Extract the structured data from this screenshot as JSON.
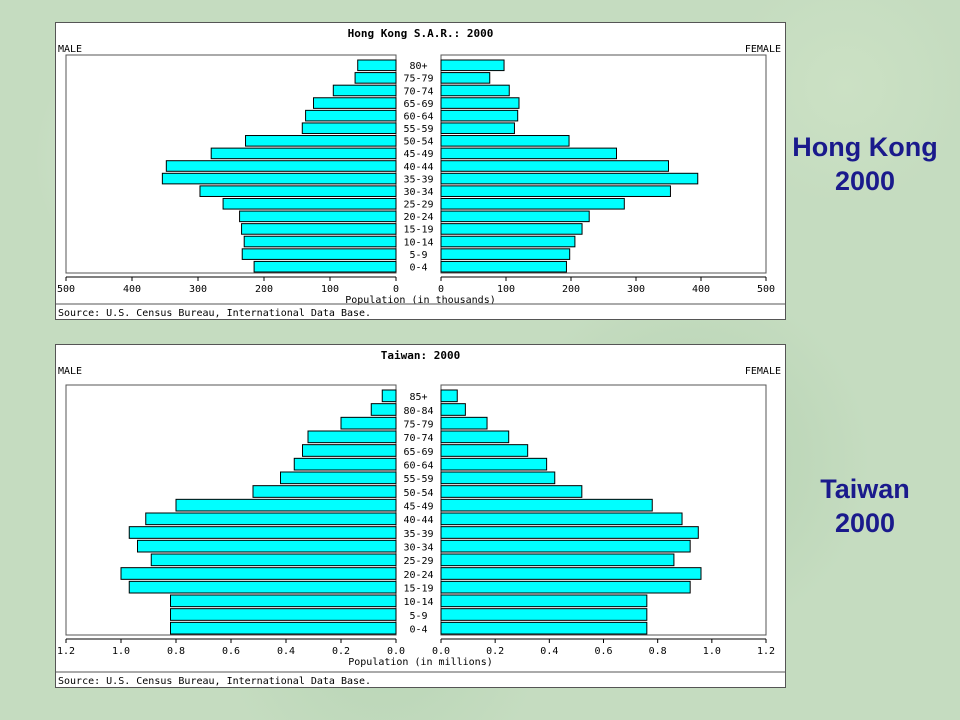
{
  "side_labels": {
    "hk": {
      "line1": "Hong Kong",
      "line2": "2000"
    },
    "tw": {
      "line1": "Taiwan",
      "line2": "2000"
    }
  },
  "colors": {
    "bar": "#00ffff",
    "bar_stroke": "#000000",
    "side_text": "#1a1a8c"
  },
  "chart_data": [
    {
      "type": "bar",
      "orientation": "horizontal-pyramid",
      "title": "Hong Kong S.A.R.: 2000",
      "left_label": "MALE",
      "right_label": "FEMALE",
      "xlabel": "Population (in thousands)",
      "source": "Source: U.S. Census Bureau, International Data Base.",
      "xlim": [
        0,
        500
      ],
      "tick_values": [
        0,
        100,
        200,
        300,
        400,
        500
      ],
      "tick_labels": [
        "0",
        "100",
        "200",
        "300",
        "400",
        "500"
      ],
      "categories": [
        "80+",
        "75-79",
        "70-74",
        "65-69",
        "60-64",
        "55-59",
        "50-54",
        "45-49",
        "40-44",
        "35-39",
        "30-34",
        "25-29",
        "20-24",
        "15-19",
        "10-14",
        "5-9",
        "0-4"
      ],
      "series": [
        {
          "name": "MALE",
          "values": [
            58,
            62,
            95,
            125,
            137,
            142,
            228,
            280,
            348,
            354,
            297,
            262,
            237,
            234,
            230,
            233,
            215
          ]
        },
        {
          "name": "FEMALE",
          "values": [
            97,
            75,
            105,
            120,
            118,
            113,
            197,
            270,
            350,
            395,
            353,
            282,
            228,
            217,
            206,
            198,
            193
          ]
        }
      ]
    },
    {
      "type": "bar",
      "orientation": "horizontal-pyramid",
      "title": "Taiwan: 2000",
      "left_label": "MALE",
      "right_label": "FEMALE",
      "xlabel": "Population (in millions)",
      "source": "Source: U.S. Census Bureau, International Data Base.",
      "xlim": [
        0,
        1.2
      ],
      "tick_values": [
        0,
        0.2,
        0.4,
        0.6,
        0.8,
        1.0,
        1.2
      ],
      "tick_labels": [
        "0.0",
        "0.2",
        "0.4",
        "0.6",
        "0.8",
        "1.0",
        "1.2"
      ],
      "categories": [
        "85+",
        "80-84",
        "75-79",
        "70-74",
        "65-69",
        "60-64",
        "55-59",
        "50-54",
        "45-49",
        "40-44",
        "35-39",
        "30-34",
        "25-29",
        "20-24",
        "15-19",
        "10-14",
        "5-9",
        "0-4"
      ],
      "series": [
        {
          "name": "MALE",
          "values": [
            0.05,
            0.09,
            0.2,
            0.32,
            0.34,
            0.37,
            0.42,
            0.52,
            0.8,
            0.91,
            0.97,
            0.94,
            0.89,
            1.0,
            0.97,
            0.82,
            0.82,
            0.82
          ]
        },
        {
          "name": "FEMALE",
          "values": [
            0.06,
            0.09,
            0.17,
            0.25,
            0.32,
            0.39,
            0.42,
            0.52,
            0.78,
            0.89,
            0.95,
            0.92,
            0.86,
            0.96,
            0.92,
            0.76,
            0.76,
            0.76
          ]
        }
      ]
    }
  ]
}
